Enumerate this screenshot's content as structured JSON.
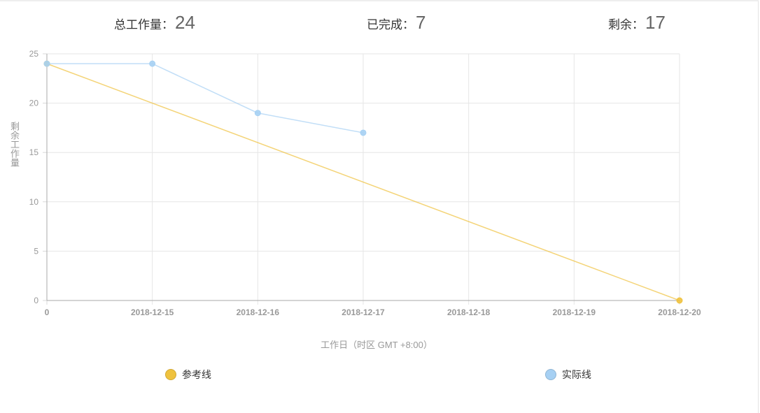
{
  "summary": {
    "total_label": "总工作量：",
    "total_value": "24",
    "done_label": "已完成：",
    "done_value": "7",
    "remaining_label": "剩余：",
    "remaining_value": "17"
  },
  "chart_data": {
    "type": "line",
    "categories": [
      "0",
      "2018-12-15",
      "2018-12-16",
      "2018-12-17",
      "2018-12-18",
      "2018-12-19",
      "2018-12-20"
    ],
    "series": [
      {
        "name": "参考线",
        "color": "#efc23e",
        "values": [
          24,
          null,
          null,
          null,
          null,
          null,
          0
        ]
      },
      {
        "name": "实际线",
        "color": "#a6d0f3",
        "values": [
          24,
          24,
          19,
          17,
          null,
          null,
          null
        ]
      }
    ],
    "xlabel": "工作日（时区 GMT +8:00）",
    "ylabel": "剩余工作量",
    "ylim": [
      0,
      25
    ],
    "yticks": [
      0,
      5,
      10,
      15,
      20,
      25
    ],
    "grid": true,
    "legend_position": "bottom"
  }
}
